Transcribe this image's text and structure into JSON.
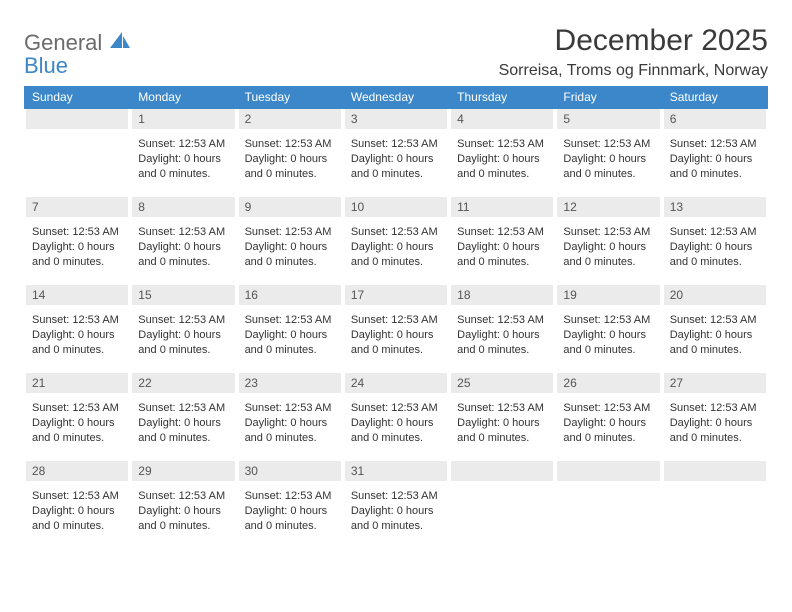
{
  "brand": {
    "text1": "General",
    "text2": "Blue",
    "icon_color": "#3c87c9",
    "text1_color": "#6b6b6b",
    "text2_color": "#3c87c9"
  },
  "header": {
    "title": "December 2025",
    "subtitle": "Sorreisa, Troms og Finnmark, Norway",
    "title_fontsize": 30,
    "subtitle_fontsize": 16,
    "title_color": "#3a3a3a"
  },
  "calendar": {
    "type": "table",
    "columns": [
      "Sunday",
      "Monday",
      "Tuesday",
      "Wednesday",
      "Thursday",
      "Friday",
      "Saturday"
    ],
    "header_bg": "#3c87c9",
    "header_text_color": "#ffffff",
    "header_fontsize": 12,
    "datebar_bg": "#ebebeb",
    "datebar_text_color": "#555555",
    "cell_fontsize": 11,
    "cell_text_color": "#333333",
    "background_color": "#ffffff",
    "weeks": [
      [
        {
          "date": "",
          "sunset": "",
          "daylight": ""
        },
        {
          "date": "1",
          "sunset": "Sunset: 12:53 AM",
          "daylight": "Daylight: 0 hours and 0 minutes."
        },
        {
          "date": "2",
          "sunset": "Sunset: 12:53 AM",
          "daylight": "Daylight: 0 hours and 0 minutes."
        },
        {
          "date": "3",
          "sunset": "Sunset: 12:53 AM",
          "daylight": "Daylight: 0 hours and 0 minutes."
        },
        {
          "date": "4",
          "sunset": "Sunset: 12:53 AM",
          "daylight": "Daylight: 0 hours and 0 minutes."
        },
        {
          "date": "5",
          "sunset": "Sunset: 12:53 AM",
          "daylight": "Daylight: 0 hours and 0 minutes."
        },
        {
          "date": "6",
          "sunset": "Sunset: 12:53 AM",
          "daylight": "Daylight: 0 hours and 0 minutes."
        }
      ],
      [
        {
          "date": "7",
          "sunset": "Sunset: 12:53 AM",
          "daylight": "Daylight: 0 hours and 0 minutes."
        },
        {
          "date": "8",
          "sunset": "Sunset: 12:53 AM",
          "daylight": "Daylight: 0 hours and 0 minutes."
        },
        {
          "date": "9",
          "sunset": "Sunset: 12:53 AM",
          "daylight": "Daylight: 0 hours and 0 minutes."
        },
        {
          "date": "10",
          "sunset": "Sunset: 12:53 AM",
          "daylight": "Daylight: 0 hours and 0 minutes."
        },
        {
          "date": "11",
          "sunset": "Sunset: 12:53 AM",
          "daylight": "Daylight: 0 hours and 0 minutes."
        },
        {
          "date": "12",
          "sunset": "Sunset: 12:53 AM",
          "daylight": "Daylight: 0 hours and 0 minutes."
        },
        {
          "date": "13",
          "sunset": "Sunset: 12:53 AM",
          "daylight": "Daylight: 0 hours and 0 minutes."
        }
      ],
      [
        {
          "date": "14",
          "sunset": "Sunset: 12:53 AM",
          "daylight": "Daylight: 0 hours and 0 minutes."
        },
        {
          "date": "15",
          "sunset": "Sunset: 12:53 AM",
          "daylight": "Daylight: 0 hours and 0 minutes."
        },
        {
          "date": "16",
          "sunset": "Sunset: 12:53 AM",
          "daylight": "Daylight: 0 hours and 0 minutes."
        },
        {
          "date": "17",
          "sunset": "Sunset: 12:53 AM",
          "daylight": "Daylight: 0 hours and 0 minutes."
        },
        {
          "date": "18",
          "sunset": "Sunset: 12:53 AM",
          "daylight": "Daylight: 0 hours and 0 minutes."
        },
        {
          "date": "19",
          "sunset": "Sunset: 12:53 AM",
          "daylight": "Daylight: 0 hours and 0 minutes."
        },
        {
          "date": "20",
          "sunset": "Sunset: 12:53 AM",
          "daylight": "Daylight: 0 hours and 0 minutes."
        }
      ],
      [
        {
          "date": "21",
          "sunset": "Sunset: 12:53 AM",
          "daylight": "Daylight: 0 hours and 0 minutes."
        },
        {
          "date": "22",
          "sunset": "Sunset: 12:53 AM",
          "daylight": "Daylight: 0 hours and 0 minutes."
        },
        {
          "date": "23",
          "sunset": "Sunset: 12:53 AM",
          "daylight": "Daylight: 0 hours and 0 minutes."
        },
        {
          "date": "24",
          "sunset": "Sunset: 12:53 AM",
          "daylight": "Daylight: 0 hours and 0 minutes."
        },
        {
          "date": "25",
          "sunset": "Sunset: 12:53 AM",
          "daylight": "Daylight: 0 hours and 0 minutes."
        },
        {
          "date": "26",
          "sunset": "Sunset: 12:53 AM",
          "daylight": "Daylight: 0 hours and 0 minutes."
        },
        {
          "date": "27",
          "sunset": "Sunset: 12:53 AM",
          "daylight": "Daylight: 0 hours and 0 minutes."
        }
      ],
      [
        {
          "date": "28",
          "sunset": "Sunset: 12:53 AM",
          "daylight": "Daylight: 0 hours and 0 minutes."
        },
        {
          "date": "29",
          "sunset": "Sunset: 12:53 AM",
          "daylight": "Daylight: 0 hours and 0 minutes."
        },
        {
          "date": "30",
          "sunset": "Sunset: 12:53 AM",
          "daylight": "Daylight: 0 hours and 0 minutes."
        },
        {
          "date": "31",
          "sunset": "Sunset: 12:53 AM",
          "daylight": "Daylight: 0 hours and 0 minutes."
        },
        {
          "date": "",
          "sunset": "",
          "daylight": ""
        },
        {
          "date": "",
          "sunset": "",
          "daylight": ""
        },
        {
          "date": "",
          "sunset": "",
          "daylight": ""
        }
      ]
    ]
  }
}
